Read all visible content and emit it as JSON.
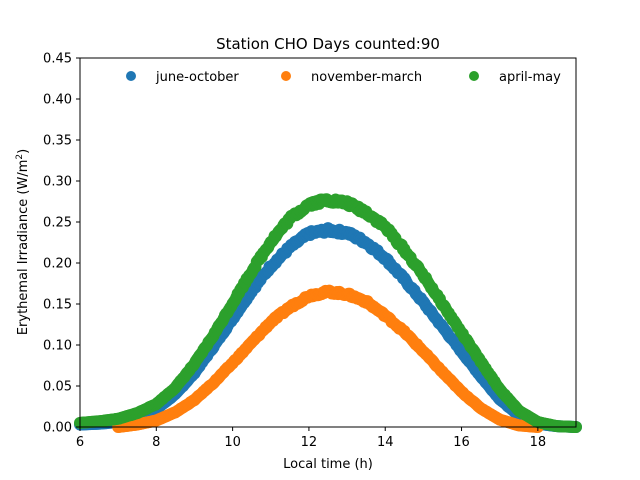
{
  "chart_data": {
    "type": "scatter",
    "title": "Station CHO Days counted:90",
    "xlabel": "Local time (h)",
    "ylabel_main": "Erythemal Irradiance (W/m",
    "ylabel_sup": "2",
    "ylabel_end": ")",
    "xlim": [
      6,
      19
    ],
    "ylim": [
      0,
      0.45
    ],
    "xticks": [
      6,
      8,
      10,
      12,
      14,
      16,
      18
    ],
    "yticks": [
      0.0,
      0.05,
      0.1,
      0.15,
      0.2,
      0.25,
      0.3,
      0.35,
      0.4,
      0.45
    ],
    "grid": false,
    "legend_placement": "top",
    "series": [
      {
        "name": "june-october",
        "color": "#1f77b4",
        "points": [
          [
            6.0,
            0.003
          ],
          [
            6.5,
            0.004
          ],
          [
            7.0,
            0.006
          ],
          [
            7.5,
            0.012
          ],
          [
            8.0,
            0.022
          ],
          [
            8.5,
            0.04
          ],
          [
            9.0,
            0.066
          ],
          [
            9.5,
            0.098
          ],
          [
            10.0,
            0.132
          ],
          [
            10.5,
            0.166
          ],
          [
            11.0,
            0.196
          ],
          [
            11.5,
            0.219
          ],
          [
            12.0,
            0.236
          ],
          [
            12.5,
            0.24
          ],
          [
            13.0,
            0.237
          ],
          [
            13.5,
            0.225
          ],
          [
            14.0,
            0.206
          ],
          [
            14.5,
            0.18
          ],
          [
            15.0,
            0.152
          ],
          [
            15.5,
            0.122
          ],
          [
            16.0,
            0.092
          ],
          [
            16.5,
            0.062
          ],
          [
            17.0,
            0.034
          ],
          [
            17.5,
            0.014
          ],
          [
            18.0,
            0.004
          ],
          [
            18.5,
            0.001
          ],
          [
            19.0,
            0.0
          ]
        ]
      },
      {
        "name": "november-march",
        "color": "#ff7f0e",
        "points": [
          [
            7.0,
            0.0
          ],
          [
            7.5,
            0.003
          ],
          [
            8.0,
            0.008
          ],
          [
            8.5,
            0.018
          ],
          [
            9.0,
            0.033
          ],
          [
            9.5,
            0.054
          ],
          [
            10.0,
            0.078
          ],
          [
            10.5,
            0.103
          ],
          [
            11.0,
            0.128
          ],
          [
            11.5,
            0.146
          ],
          [
            12.0,
            0.16
          ],
          [
            12.5,
            0.165
          ],
          [
            13.0,
            0.162
          ],
          [
            13.5,
            0.153
          ],
          [
            14.0,
            0.136
          ],
          [
            14.5,
            0.116
          ],
          [
            15.0,
            0.092
          ],
          [
            15.5,
            0.067
          ],
          [
            16.0,
            0.043
          ],
          [
            16.5,
            0.023
          ],
          [
            17.0,
            0.009
          ],
          [
            17.5,
            0.002
          ],
          [
            18.0,
            0.0
          ]
        ]
      },
      {
        "name": "april-may",
        "color": "#2ca02c",
        "points": [
          [
            6.0,
            0.005
          ],
          [
            6.5,
            0.007
          ],
          [
            7.0,
            0.01
          ],
          [
            7.5,
            0.017
          ],
          [
            8.0,
            0.028
          ],
          [
            8.5,
            0.048
          ],
          [
            9.0,
            0.077
          ],
          [
            9.5,
            0.112
          ],
          [
            10.0,
            0.151
          ],
          [
            10.5,
            0.19
          ],
          [
            11.0,
            0.226
          ],
          [
            11.5,
            0.254
          ],
          [
            12.0,
            0.272
          ],
          [
            12.5,
            0.277
          ],
          [
            13.0,
            0.273
          ],
          [
            13.5,
            0.262
          ],
          [
            14.0,
            0.244
          ],
          [
            14.5,
            0.216
          ],
          [
            15.0,
            0.185
          ],
          [
            15.5,
            0.15
          ],
          [
            16.0,
            0.115
          ],
          [
            16.5,
            0.08
          ],
          [
            17.0,
            0.046
          ],
          [
            17.5,
            0.02
          ],
          [
            18.0,
            0.006
          ],
          [
            18.5,
            0.001
          ],
          [
            19.0,
            0.0
          ]
        ]
      }
    ]
  }
}
